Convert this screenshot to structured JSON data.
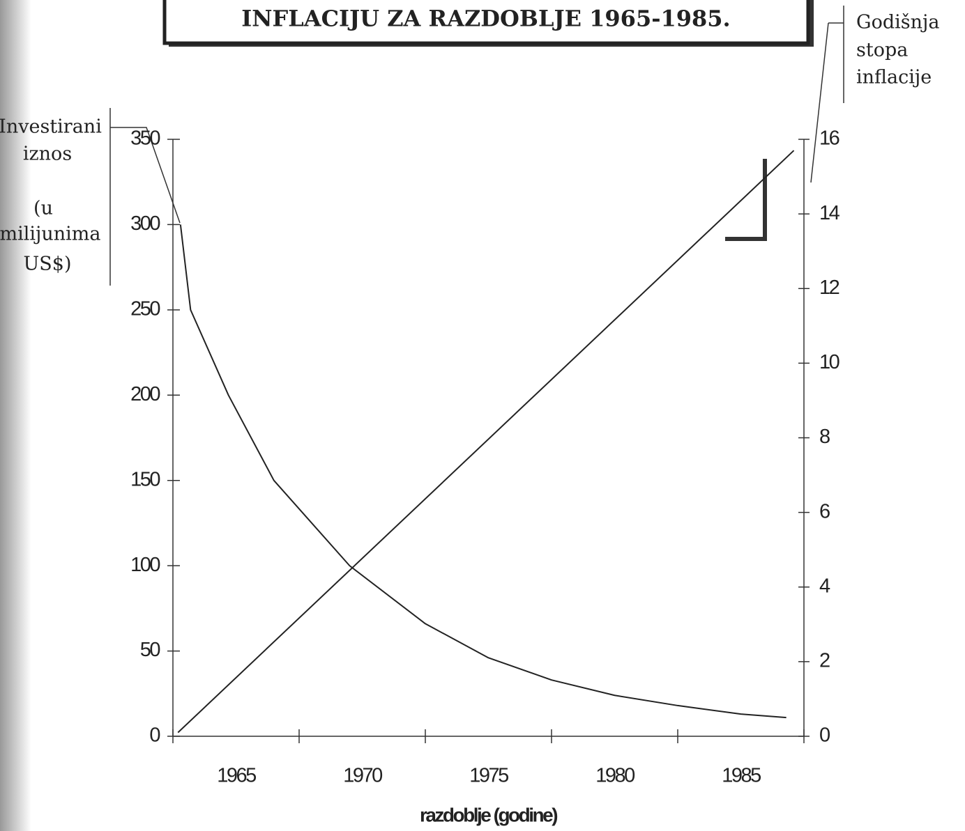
{
  "chart_data": {
    "type": "line",
    "title": "INFLACIJU ZA RAZDOBLJE 1965-1985.",
    "xlabel": "razdoblje (godine)",
    "ylabel": [
      "Investirani",
      "iznos",
      "(u",
      "milijunima",
      "US$)"
    ],
    "y2label": [
      "Godišnja",
      "stopa",
      "inflacije"
    ],
    "xlim": [
      1962.5,
      1987.5
    ],
    "xticks": [
      1965,
      1970,
      1975,
      1980,
      1985
    ],
    "x_minor_ticks": [
      1962.5,
      1967.5,
      1972.5,
      1977.5,
      1982.5,
      1987.5
    ],
    "ylim": [
      0,
      350
    ],
    "yticks": [
      0,
      50,
      100,
      150,
      200,
      250,
      300,
      350
    ],
    "y2lim": [
      0,
      16
    ],
    "y2ticks": [
      0,
      2,
      4,
      6,
      8,
      10,
      12,
      14,
      16
    ],
    "grid": false,
    "series": [
      {
        "color": "#222",
        "x": [
          1962.8,
          1963.2,
          1964.7,
          1966.5,
          1969.5,
          1972.5,
          1975,
          1977.5,
          1980,
          1982.5,
          1985,
          1986.8
        ],
        "values": [
          300,
          250,
          200,
          150,
          100,
          66,
          46,
          33,
          24,
          18,
          13,
          11
        ]
      },
      {
        "color": "#222",
        "axis": "y2",
        "x": [
          1962.7,
          1987.1
        ],
        "values": [
          0.1,
          15.7
        ]
      }
    ]
  }
}
